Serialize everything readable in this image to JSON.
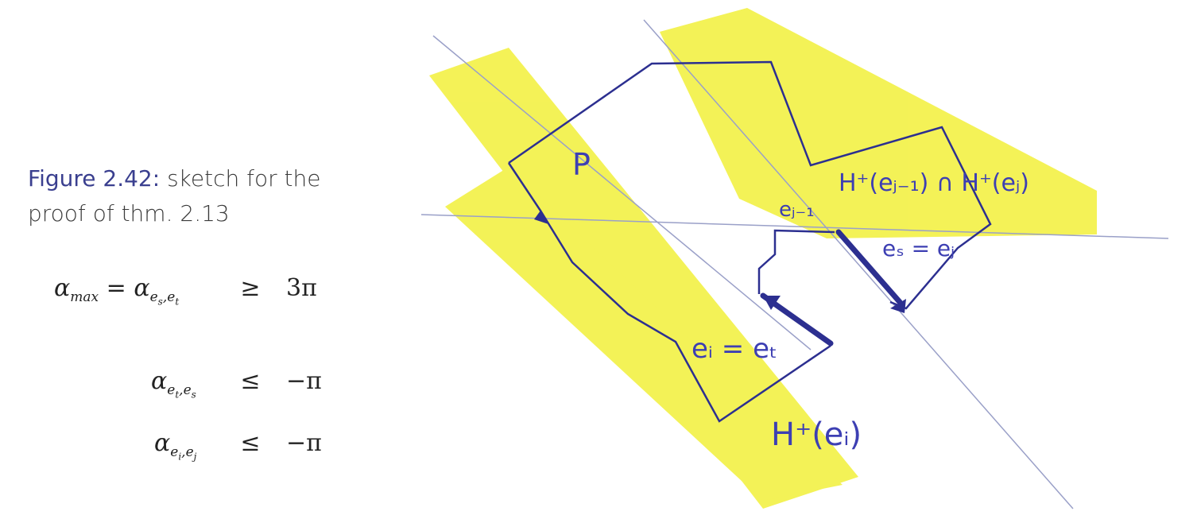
{
  "caption": {
    "label": "Figure 2.42:",
    "text": "sketch for the proof of thm. 2.13"
  },
  "equations": [
    {
      "lhs_symbol": "α",
      "lhs_sub": "max",
      "eq_symbol": "=",
      "mid_symbol": "α",
      "mid_sub1": "e",
      "mid_sub1_sub": "s",
      "mid_sub2": "e",
      "mid_sub2_sub": "t",
      "relation": "≥",
      "rhs": "3π"
    },
    {
      "lhs_symbol": "α",
      "sub1": "e",
      "sub1_sub": "t",
      "sub2": "e",
      "sub2_sub": "s",
      "relation": "≤",
      "rhs": "−π"
    },
    {
      "lhs_symbol": "α",
      "sub1": "e",
      "sub1_sub": "i",
      "sub2": "e",
      "sub2_sub": "j",
      "relation": "≤",
      "rhs": "−π"
    }
  ],
  "sketch": {
    "labels": {
      "polygon": "P",
      "h_plus_ej1": "H⁺(eⱼ₋₁) ∩ H⁺(eⱼ)",
      "ej_minus_1": "eⱼ₋₁",
      "es_eq_ej": "eₛ = eⱼ",
      "ei_eq_et": "eᵢ = eₜ",
      "h_plus_ei": "H⁺(eᵢ)"
    },
    "colors": {
      "highlight": "#f2f03a",
      "ink": "#3d3fb3",
      "dark_ink": "#2c2f90",
      "thin_line": "#9aa0c8"
    }
  }
}
